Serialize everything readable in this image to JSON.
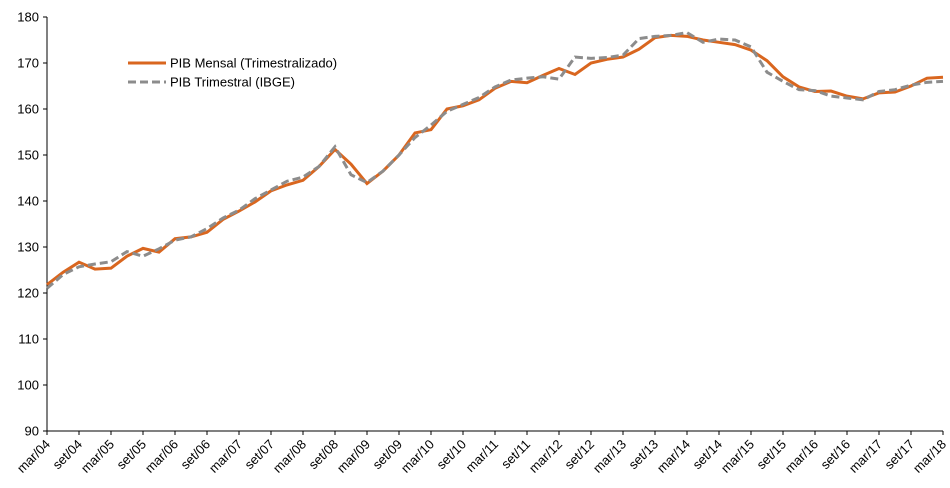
{
  "chart_data": {
    "type": "line",
    "categories": [
      "mar/04",
      null,
      "set/04",
      null,
      "mar/05",
      null,
      "set/05",
      null,
      "mar/06",
      null,
      "set/06",
      null,
      "mar/07",
      null,
      "set/07",
      null,
      "mar/08",
      null,
      "set/08",
      null,
      "mar/09",
      null,
      "set/09",
      null,
      "mar/10",
      null,
      "set/10",
      null,
      "mar/11",
      null,
      "set/11",
      null,
      "mar/12",
      null,
      "set/12",
      null,
      "mar/13",
      null,
      "set/13",
      null,
      "mar/14",
      null,
      "set/14",
      null,
      "mar/15",
      null,
      "set/15",
      null,
      "mar/16",
      null,
      "set/16",
      null,
      "mar/17",
      null,
      "set/17",
      null,
      "mar/18"
    ],
    "series": [
      {
        "name": "PIB Mensal (Trimestralizado)",
        "color": "#d9661f",
        "style": "solid",
        "values": [
          121.8,
          124.5,
          126.7,
          125.2,
          125.4,
          128,
          129.7,
          128.9,
          131.8,
          132.2,
          133.2,
          136,
          137.8,
          139.8,
          142.2,
          143.5,
          144.5,
          147.5,
          151.2,
          148,
          143.8,
          146.5,
          150,
          154.8,
          155.5,
          160,
          160.7,
          162,
          164.5,
          166,
          165.7,
          167.3,
          168.8,
          167.5,
          170,
          170.8,
          171.3,
          173,
          175.5,
          176,
          175.8,
          175,
          174.5,
          174,
          172.8,
          170.5,
          167,
          164.8,
          163.8,
          163.9,
          162.8,
          162.2,
          163.5,
          163.7,
          165,
          166.7,
          166.9
        ]
      },
      {
        "name": "PIB Trimestral (IBGE)",
        "color": "#8c8c8c",
        "style": "dashed",
        "values": [
          121,
          124,
          125.7,
          126.3,
          126.8,
          129,
          128,
          129.6,
          131.5,
          132.2,
          134,
          136.3,
          138,
          140.5,
          142.4,
          144.3,
          145.2,
          147.5,
          151.8,
          145.7,
          144,
          146.5,
          150,
          153.8,
          156.5,
          159.5,
          161,
          162.5,
          164.8,
          166.3,
          166.7,
          167,
          166.5,
          171.3,
          171,
          171.2,
          171.7,
          175.3,
          175.8,
          176,
          176.6,
          174.5,
          175.2,
          175,
          173.5,
          168,
          166,
          164.2,
          164,
          162.8,
          162.4,
          162,
          163.8,
          164.2,
          165.2,
          165.8,
          166
        ]
      }
    ],
    "ylim": [
      90,
      180
    ],
    "yticks": [
      90,
      100,
      110,
      120,
      130,
      140,
      150,
      160,
      170,
      180
    ],
    "grid": false
  }
}
